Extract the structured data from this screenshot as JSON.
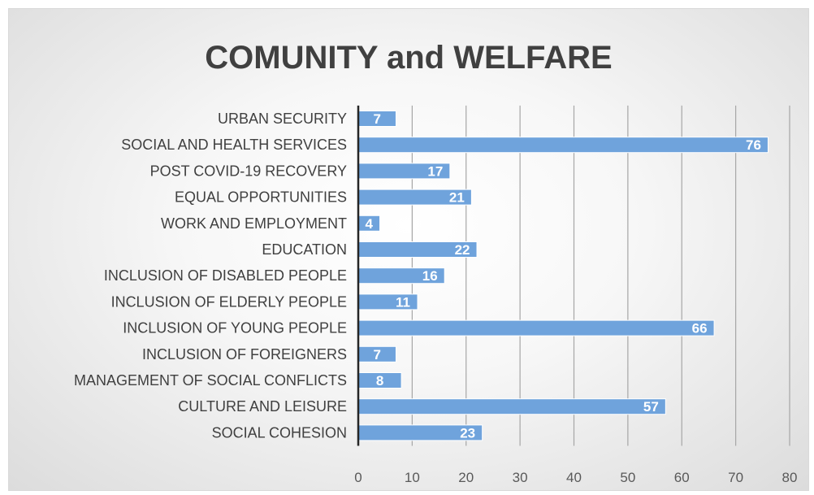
{
  "chart_data": {
    "type": "bar",
    "orientation": "horizontal",
    "title": "COMUNITY and WELFARE",
    "xlabel": "",
    "ylabel": "",
    "categories": [
      "URBAN SECURITY",
      "SOCIAL AND HEALTH SERVICES",
      "POST COVID-19 RECOVERY",
      "EQUAL OPPORTUNITIES",
      "WORK AND EMPLOYMENT",
      "EDUCATION",
      "INCLUSION OF DISABLED PEOPLE",
      "INCLUSION OF ELDERLY PEOPLE",
      "INCLUSION OF YOUNG PEOPLE",
      "INCLUSION OF FOREIGNERS",
      "MANAGEMENT OF SOCIAL CONFLICTS",
      "CULTURE AND LEISURE",
      "SOCIAL COHESION"
    ],
    "values": [
      7,
      76,
      17,
      21,
      4,
      22,
      16,
      11,
      66,
      7,
      8,
      57,
      23
    ],
    "xlim": [
      0,
      80
    ],
    "xticks": [
      0,
      10,
      20,
      30,
      40,
      50,
      60,
      70,
      80
    ],
    "grid": true,
    "legend": "none",
    "data_labels": true,
    "colors": {
      "bar": "#6fa3dc",
      "bar_border": "#ffffff",
      "grid": "#a6a6a6",
      "axis": "#262626",
      "title": "#404040"
    }
  }
}
